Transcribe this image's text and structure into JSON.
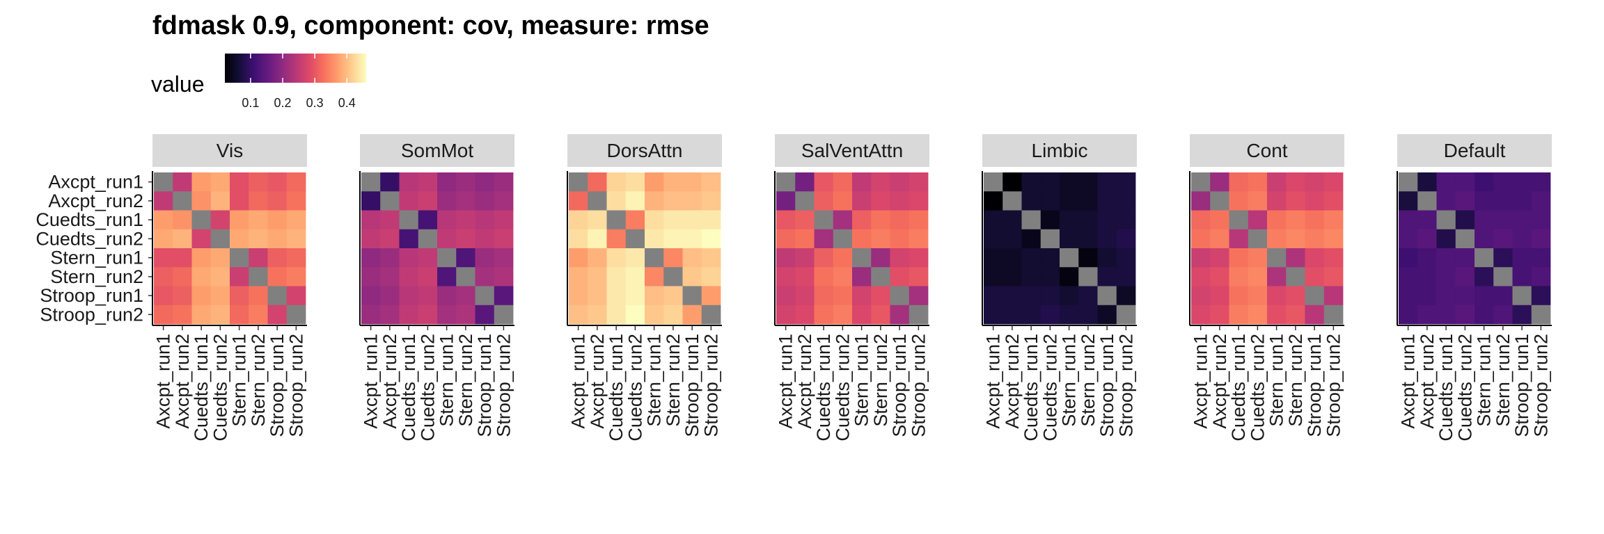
{
  "chart_data": {
    "type": "heatmap",
    "title": "fdmask 0.9, component: cov, measure: rmse",
    "legend": {
      "title": "value",
      "ticks": [
        "0.1",
        "0.2",
        "0.3",
        "0.4"
      ],
      "tick_values": [
        0.1,
        0.2,
        0.3,
        0.4
      ],
      "range": [
        0.02,
        0.46
      ],
      "colormap": "magma",
      "placement": "top-left"
    },
    "diagonal_color": "#808080",
    "labels": [
      "Axcpt_run1",
      "Axcpt_run2",
      "Cuedts_run1",
      "Cuedts_run2",
      "Stern_run1",
      "Stern_run2",
      "Stroop_run1",
      "Stroop_run2"
    ],
    "panels": [
      {
        "name": "Vis",
        "matrix": [
          [
            null,
            0.25,
            0.37,
            0.38,
            0.29,
            0.31,
            0.3,
            0.32
          ],
          [
            0.25,
            null,
            0.36,
            0.39,
            0.29,
            0.32,
            0.31,
            0.33
          ],
          [
            0.37,
            0.36,
            null,
            0.27,
            0.37,
            0.38,
            0.37,
            0.38
          ],
          [
            0.38,
            0.39,
            0.27,
            null,
            0.38,
            0.39,
            0.38,
            0.39
          ],
          [
            0.29,
            0.29,
            0.37,
            0.38,
            null,
            0.26,
            0.31,
            0.32
          ],
          [
            0.31,
            0.32,
            0.38,
            0.39,
            0.26,
            null,
            0.33,
            0.34
          ],
          [
            0.3,
            0.31,
            0.37,
            0.38,
            0.31,
            0.33,
            null,
            0.27
          ],
          [
            0.32,
            0.33,
            0.38,
            0.39,
            0.32,
            0.34,
            0.27,
            null
          ]
        ]
      },
      {
        "name": "SomMot",
        "matrix": [
          [
            null,
            0.1,
            0.24,
            0.25,
            0.2,
            0.21,
            0.2,
            0.21
          ],
          [
            0.1,
            null,
            0.25,
            0.26,
            0.21,
            0.22,
            0.21,
            0.22
          ],
          [
            0.24,
            0.25,
            null,
            0.12,
            0.24,
            0.25,
            0.24,
            0.25
          ],
          [
            0.25,
            0.26,
            0.12,
            null,
            0.25,
            0.26,
            0.25,
            0.26
          ],
          [
            0.2,
            0.21,
            0.24,
            0.25,
            null,
            0.13,
            0.21,
            0.22
          ],
          [
            0.21,
            0.22,
            0.25,
            0.26,
            0.13,
            null,
            0.22,
            0.23
          ],
          [
            0.2,
            0.21,
            0.24,
            0.25,
            0.21,
            0.22,
            null,
            0.14
          ],
          [
            0.21,
            0.22,
            0.25,
            0.26,
            0.22,
            0.23,
            0.14,
            null
          ]
        ]
      },
      {
        "name": "DorsAttn",
        "matrix": [
          [
            null,
            0.32,
            0.42,
            0.43,
            0.37,
            0.39,
            0.39,
            0.4
          ],
          [
            0.32,
            null,
            0.43,
            0.45,
            0.39,
            0.4,
            0.4,
            0.41
          ],
          [
            0.42,
            0.43,
            null,
            0.34,
            0.43,
            0.44,
            0.44,
            0.44
          ],
          [
            0.43,
            0.45,
            0.34,
            null,
            0.44,
            0.45,
            0.45,
            0.46
          ],
          [
            0.37,
            0.39,
            0.43,
            0.44,
            null,
            0.35,
            0.4,
            0.41
          ],
          [
            0.39,
            0.4,
            0.44,
            0.45,
            0.35,
            null,
            0.41,
            0.42
          ],
          [
            0.39,
            0.4,
            0.44,
            0.45,
            0.4,
            0.41,
            null,
            0.37
          ],
          [
            0.4,
            0.41,
            0.44,
            0.46,
            0.41,
            0.42,
            0.37,
            null
          ]
        ]
      },
      {
        "name": "SalVentAttn",
        "matrix": [
          [
            null,
            0.17,
            0.3,
            0.32,
            0.25,
            0.27,
            0.26,
            0.27
          ],
          [
            0.17,
            null,
            0.31,
            0.33,
            0.26,
            0.28,
            0.27,
            0.28
          ],
          [
            0.3,
            0.31,
            null,
            0.22,
            0.31,
            0.33,
            0.32,
            0.33
          ],
          [
            0.32,
            0.33,
            0.22,
            null,
            0.33,
            0.34,
            0.33,
            0.34
          ],
          [
            0.25,
            0.26,
            0.31,
            0.33,
            null,
            0.21,
            0.27,
            0.28
          ],
          [
            0.27,
            0.28,
            0.33,
            0.34,
            0.21,
            null,
            0.29,
            0.3
          ],
          [
            0.26,
            0.27,
            0.32,
            0.33,
            0.27,
            0.29,
            null,
            0.22
          ],
          [
            0.27,
            0.28,
            0.33,
            0.34,
            0.28,
            0.3,
            0.22,
            null
          ]
        ]
      },
      {
        "name": "Limbic",
        "matrix": [
          [
            null,
            0.02,
            0.06,
            0.06,
            0.05,
            0.05,
            0.07,
            0.07
          ],
          [
            0.02,
            null,
            0.06,
            0.06,
            0.05,
            0.05,
            0.07,
            0.07
          ],
          [
            0.06,
            0.06,
            null,
            0.04,
            0.06,
            0.06,
            0.07,
            0.07
          ],
          [
            0.06,
            0.06,
            0.04,
            null,
            0.06,
            0.06,
            0.07,
            0.08
          ],
          [
            0.05,
            0.05,
            0.06,
            0.06,
            null,
            0.03,
            0.06,
            0.07
          ],
          [
            0.05,
            0.05,
            0.06,
            0.06,
            0.03,
            null,
            0.07,
            0.07
          ],
          [
            0.07,
            0.07,
            0.07,
            0.07,
            0.06,
            0.07,
            null,
            0.05
          ],
          [
            0.07,
            0.07,
            0.07,
            0.08,
            0.07,
            0.07,
            0.05,
            null
          ]
        ]
      },
      {
        "name": "Cont",
        "matrix": [
          [
            null,
            0.21,
            0.32,
            0.33,
            0.26,
            0.28,
            0.27,
            0.28
          ],
          [
            0.21,
            null,
            0.33,
            0.34,
            0.27,
            0.29,
            0.28,
            0.29
          ],
          [
            0.32,
            0.33,
            null,
            0.24,
            0.33,
            0.34,
            0.33,
            0.34
          ],
          [
            0.33,
            0.34,
            0.24,
            null,
            0.34,
            0.35,
            0.34,
            0.35
          ],
          [
            0.26,
            0.27,
            0.33,
            0.34,
            null,
            0.23,
            0.28,
            0.29
          ],
          [
            0.28,
            0.29,
            0.34,
            0.35,
            0.23,
            null,
            0.29,
            0.3
          ],
          [
            0.27,
            0.28,
            0.33,
            0.34,
            0.28,
            0.29,
            null,
            0.24
          ],
          [
            0.28,
            0.29,
            0.34,
            0.35,
            0.29,
            0.3,
            0.24,
            null
          ]
        ]
      },
      {
        "name": "Default",
        "matrix": [
          [
            null,
            0.07,
            0.13,
            0.13,
            0.11,
            0.12,
            0.12,
            0.12
          ],
          [
            0.07,
            null,
            0.13,
            0.14,
            0.12,
            0.12,
            0.12,
            0.13
          ],
          [
            0.13,
            0.13,
            null,
            0.08,
            0.13,
            0.13,
            0.13,
            0.13
          ],
          [
            0.13,
            0.14,
            0.08,
            null,
            0.13,
            0.14,
            0.13,
            0.14
          ],
          [
            0.11,
            0.12,
            0.13,
            0.13,
            null,
            0.09,
            0.12,
            0.12
          ],
          [
            0.12,
            0.12,
            0.13,
            0.14,
            0.09,
            null,
            0.12,
            0.13
          ],
          [
            0.12,
            0.12,
            0.13,
            0.13,
            0.12,
            0.12,
            null,
            0.09
          ],
          [
            0.12,
            0.13,
            0.13,
            0.14,
            0.12,
            0.13,
            0.09,
            null
          ]
        ]
      }
    ]
  }
}
